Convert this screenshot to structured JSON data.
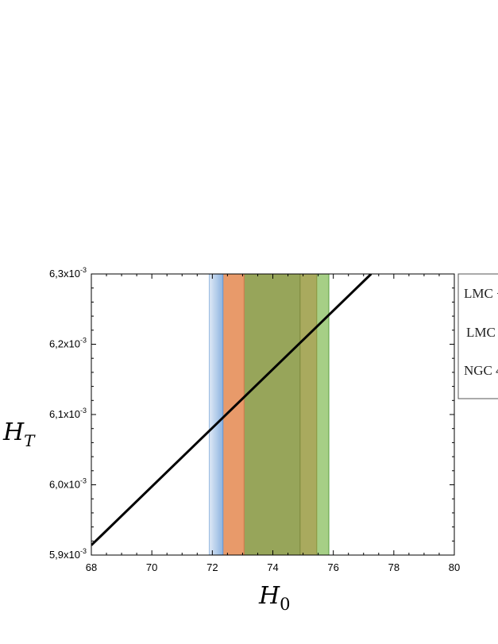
{
  "chart_data": {
    "type": "line",
    "title": "",
    "xlabel": "H",
    "xlabel_sub": "0",
    "ylabel": "H",
    "ylabel_sub": "T",
    "xlim": [
      68,
      80
    ],
    "ylim": [
      0.0059,
      0.0063
    ],
    "xticks": [
      {
        "value": 68,
        "label": "68"
      },
      {
        "value": 70,
        "label": "70"
      },
      {
        "value": 72,
        "label": "72"
      },
      {
        "value": 74,
        "label": "74"
      },
      {
        "value": 76,
        "label": "76"
      },
      {
        "value": 78,
        "label": "78"
      },
      {
        "value": 80,
        "label": "80"
      }
    ],
    "yticks": [
      {
        "value": 0.0059,
        "mantissa": "5,9x10",
        "exp": "-3"
      },
      {
        "value": 0.006,
        "mantissa": "6,0x10",
        "exp": "-3"
      },
      {
        "value": 0.0061,
        "mantissa": "6,1x10",
        "exp": "-3"
      },
      {
        "value": 0.0062,
        "mantissa": "6,2x10",
        "exp": "-3"
      },
      {
        "value": 0.0063,
        "mantissa": "6,3x10",
        "exp": "-3"
      }
    ],
    "grid": false,
    "line": {
      "color": "#000000",
      "points": [
        [
          68,
          0.005914
        ],
        [
          77.25,
          0.0063
        ]
      ]
    },
    "bands": [
      {
        "x0": 71.9,
        "x1": 72.35,
        "color": "#8cb3e0"
      },
      {
        "x0": 72.35,
        "x1": 73.05,
        "color": "#e89a6a"
      },
      {
        "x0": 73.05,
        "x1": 74.9,
        "color": "#97a55a"
      },
      {
        "x0": 74.9,
        "x1": 75.45,
        "color": "#a9aa5e"
      },
      {
        "x0": 75.45,
        "x1": 75.85,
        "color": "#a6cf86"
      }
    ],
    "legend": {
      "placement": "right",
      "entries": [
        "LMC +",
        "LMC",
        "NGC 4"
      ]
    }
  }
}
